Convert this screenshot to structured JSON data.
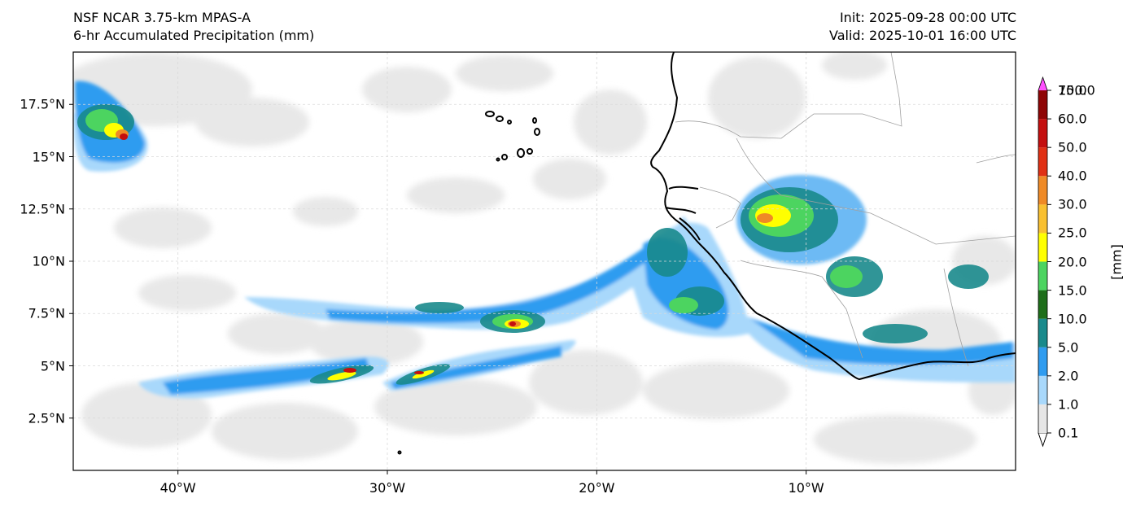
{
  "header": {
    "model": "NSF NCAR 3.75-km MPAS-A",
    "field": "6-hr Accumulated Precipitation (mm)",
    "init": "Init: 2025-09-28 00:00 UTC",
    "valid": "Valid: 2025-10-01 16:00 UTC"
  },
  "map": {
    "lat_labels": [
      "17.5°N",
      "15°N",
      "12.5°N",
      "10°N",
      "7.5°N",
      "5°N",
      "2.5°N"
    ],
    "lat_values": [
      17.5,
      15,
      12.5,
      10,
      7.5,
      5,
      2.5
    ],
    "lon_labels": [
      "40°W",
      "30°W",
      "20°W",
      "10°W"
    ],
    "lon_values": [
      -40,
      -30,
      -20,
      -10
    ],
    "extent": {
      "lon_min": -45,
      "lon_max": 0,
      "lat_min": 0,
      "lat_max": 20
    }
  },
  "colorbar": {
    "units": "[mm]",
    "levels": [
      "0.1",
      "1.0",
      "2.0",
      "5.0",
      "10.0",
      "15.0",
      "20.0",
      "25.0",
      "30.0",
      "40.0",
      "50.0",
      "60.0",
      "75.0",
      "100.0"
    ],
    "colors": [
      "#e6e6e6",
      "#a8d8fb",
      "#2f9cf0",
      "#198a8c",
      "#1e6e1a",
      "#4cd460",
      "#ffff00",
      "#f9c030",
      "#ef8a26",
      "#e03014",
      "#c40f0f",
      "#8e0505",
      "#7c0a80",
      "#ff50ff"
    ]
  }
}
